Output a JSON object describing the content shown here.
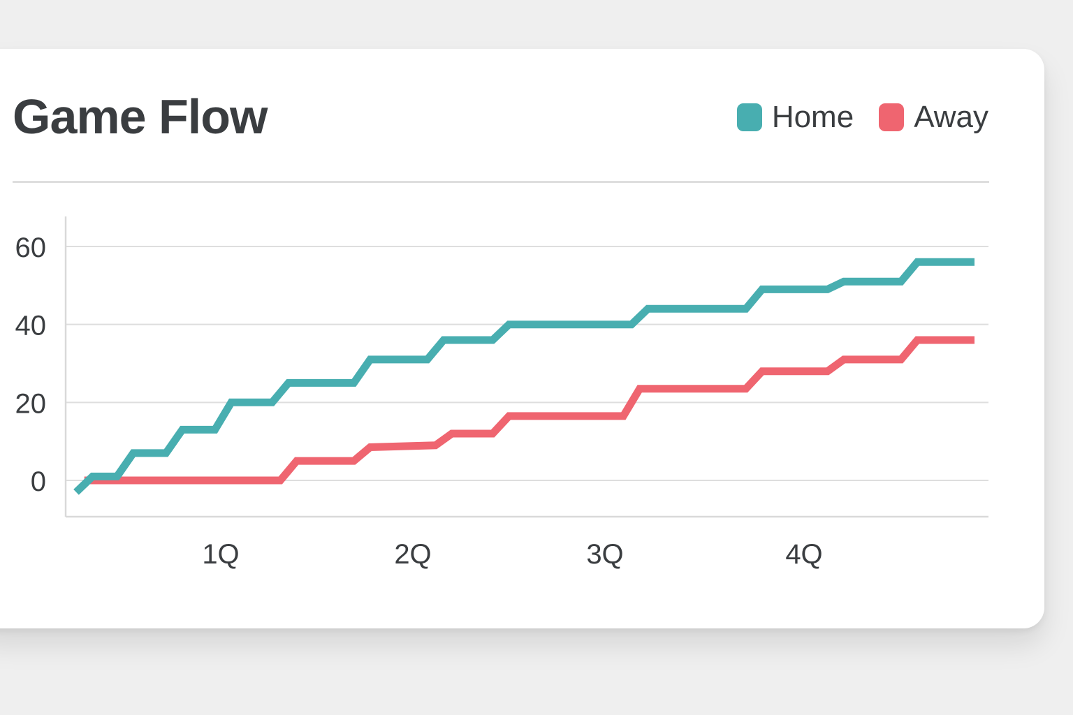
{
  "chart_data": {
    "type": "line",
    "title": "Game Flow",
    "xlabel": "",
    "ylabel": "",
    "x_ticks": [
      "1Q",
      "2Q",
      "3Q",
      "4Q"
    ],
    "y_ticks": [
      0,
      20,
      40,
      60
    ],
    "ylim": [
      -9,
      68
    ],
    "grid": true,
    "legend_position": "top-right",
    "series": [
      {
        "name": "Home",
        "color": "#48aeb0",
        "points": [
          [
            0.0,
            -3
          ],
          [
            0.2,
            1
          ],
          [
            0.5,
            1
          ],
          [
            0.7,
            7
          ],
          [
            1.1,
            7
          ],
          [
            1.3,
            13
          ],
          [
            1.7,
            13
          ],
          [
            1.9,
            20
          ],
          [
            2.4,
            20
          ],
          [
            2.6,
            25
          ],
          [
            3.4,
            25
          ],
          [
            3.6,
            31
          ],
          [
            4.3,
            31
          ],
          [
            4.5,
            36
          ],
          [
            5.1,
            36
          ],
          [
            5.3,
            40
          ],
          [
            6.8,
            40
          ],
          [
            7.0,
            44
          ],
          [
            8.2,
            44
          ],
          [
            8.4,
            49
          ],
          [
            9.2,
            49
          ],
          [
            9.4,
            51
          ],
          [
            10.1,
            51
          ],
          [
            10.3,
            56
          ],
          [
            11.0,
            56
          ]
        ]
      },
      {
        "name": "Away",
        "color": "#ef6570",
        "points": [
          [
            0.1,
            0
          ],
          [
            2.5,
            0
          ],
          [
            2.7,
            5
          ],
          [
            3.4,
            5
          ],
          [
            3.6,
            8.5
          ],
          [
            4.4,
            9
          ],
          [
            4.6,
            12
          ],
          [
            5.1,
            12
          ],
          [
            5.3,
            16.5
          ],
          [
            6.7,
            16.5
          ],
          [
            6.9,
            23.5
          ],
          [
            8.2,
            23.5
          ],
          [
            8.4,
            28
          ],
          [
            9.2,
            28
          ],
          [
            9.4,
            31
          ],
          [
            10.1,
            31
          ],
          [
            10.3,
            36
          ],
          [
            11.0,
            36
          ]
        ]
      }
    ]
  },
  "colors": {
    "grid": "#dedede",
    "axis": "#d9d9d9",
    "tick_text": "#3a3d40"
  }
}
